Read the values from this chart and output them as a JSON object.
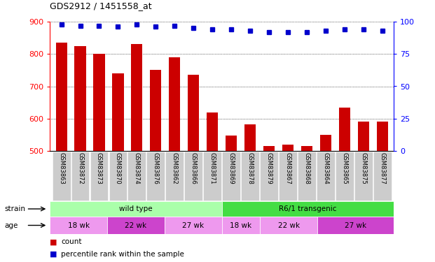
{
  "title": "GDS2912 / 1451558_at",
  "samples": [
    "GSM83863",
    "GSM83872",
    "GSM83873",
    "GSM83870",
    "GSM83874",
    "GSM83876",
    "GSM83862",
    "GSM83866",
    "GSM83871",
    "GSM83869",
    "GSM83878",
    "GSM83879",
    "GSM83867",
    "GSM83868",
    "GSM83864",
    "GSM83865",
    "GSM83875",
    "GSM83877"
  ],
  "counts": [
    835,
    825,
    800,
    740,
    830,
    750,
    790,
    735,
    620,
    548,
    582,
    515,
    520,
    515,
    550,
    635,
    590,
    590
  ],
  "percentile_ranks": [
    98,
    97,
    97,
    96,
    98,
    96,
    97,
    95,
    94,
    94,
    93,
    92,
    92,
    92,
    93,
    94,
    94,
    93
  ],
  "bar_color": "#cc0000",
  "dot_color": "#0000cc",
  "ylim_left": [
    500,
    900
  ],
  "ylim_right": [
    0,
    100
  ],
  "yticks_left": [
    500,
    600,
    700,
    800,
    900
  ],
  "yticks_right": [
    0,
    25,
    50,
    75,
    100
  ],
  "strain_row": [
    {
      "label": "wild type",
      "start": 0,
      "end": 9,
      "color": "#aaffaa"
    },
    {
      "label": "R6/1 transgenic",
      "start": 9,
      "end": 18,
      "color": "#44dd44"
    }
  ],
  "age_row": [
    {
      "label": "18 wk",
      "start": 0,
      "end": 3,
      "color": "#ee99ee"
    },
    {
      "label": "22 wk",
      "start": 3,
      "end": 6,
      "color": "#cc44cc"
    },
    {
      "label": "27 wk",
      "start": 6,
      "end": 9,
      "color": "#ee99ee"
    },
    {
      "label": "18 wk",
      "start": 9,
      "end": 11,
      "color": "#ee99ee"
    },
    {
      "label": "22 wk",
      "start": 11,
      "end": 14,
      "color": "#ee99ee"
    },
    {
      "label": "27 wk",
      "start": 14,
      "end": 18,
      "color": "#cc44cc"
    }
  ],
  "legend_count_color": "#cc0000",
  "legend_dot_color": "#0000cc",
  "xtick_bg": "#cccccc",
  "plot_bg": "#ffffff"
}
